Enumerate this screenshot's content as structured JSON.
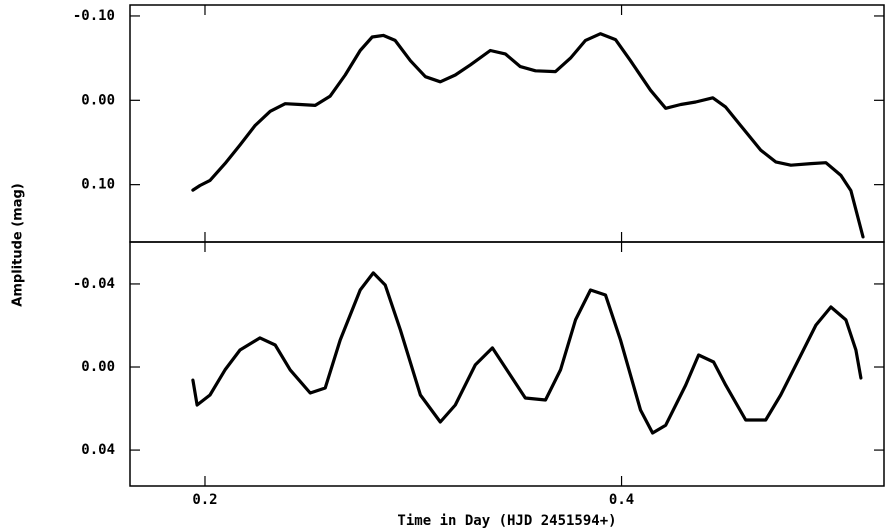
{
  "chart_data": [
    {
      "type": "line",
      "ylabel": "Amplitude (mag)",
      "color": "#000000",
      "y_inverted": true,
      "xlim": [
        0.164,
        0.526
      ],
      "ylim": [
        -0.113,
        0.168
      ],
      "yticks": [
        {
          "value": -0.1,
          "label": "-0.10"
        },
        {
          "value": 0,
          "label": "0.00"
        },
        {
          "value": 0.1,
          "label": "0.10"
        }
      ],
      "x": [
        0.1942,
        0.1976,
        0.2024,
        0.2096,
        0.2168,
        0.224,
        0.2313,
        0.2385,
        0.2457,
        0.2529,
        0.2601,
        0.2673,
        0.2745,
        0.2803,
        0.2856,
        0.2913,
        0.2986,
        0.3058,
        0.313,
        0.3202,
        0.3274,
        0.337,
        0.3442,
        0.3514,
        0.3587,
        0.3683,
        0.3755,
        0.3827,
        0.3899,
        0.3971,
        0.4043,
        0.4139,
        0.4212,
        0.4284,
        0.4356,
        0.4438,
        0.45,
        0.4572,
        0.4668,
        0.474,
        0.4813,
        0.4909,
        0.4981,
        0.5053,
        0.5101,
        0.5159
      ],
      "values": [
        0.1065,
        0.101,
        0.095,
        0.075,
        0.053,
        0.03,
        0.013,
        0.004,
        0.005,
        0.006,
        -0.005,
        -0.03,
        -0.059,
        -0.075,
        -0.077,
        -0.071,
        -0.047,
        -0.028,
        -0.022,
        -0.03,
        -0.042,
        -0.059,
        -0.055,
        -0.04,
        -0.035,
        -0.034,
        -0.05,
        -0.071,
        -0.079,
        -0.072,
        -0.047,
        -0.012,
        0.0095,
        0.005,
        0.002,
        -0.003,
        0.008,
        0.03,
        0.059,
        0.073,
        0.077,
        0.075,
        0.074,
        0.089,
        0.107,
        0.162
      ]
    },
    {
      "type": "line",
      "xlabel": "Time in Day (HJD 2451594+)",
      "color": "#000000",
      "y_inverted": true,
      "xlim": [
        0.164,
        0.526
      ],
      "ylim": [
        -0.0602,
        0.0573
      ],
      "xticks": [
        0.2,
        0.4
      ],
      "yticks": [
        {
          "value": -0.04,
          "label": "-0.04"
        },
        {
          "value": 0,
          "label": "0.00"
        },
        {
          "value": 0.04,
          "label": "0.04"
        }
      ],
      "x": [
        0.1942,
        0.1962,
        0.2024,
        0.2096,
        0.2168,
        0.2264,
        0.2337,
        0.2409,
        0.2505,
        0.2577,
        0.2649,
        0.2745,
        0.2808,
        0.2865,
        0.2938,
        0.3034,
        0.313,
        0.3202,
        0.3298,
        0.338,
        0.3466,
        0.3538,
        0.3635,
        0.3707,
        0.3779,
        0.3851,
        0.3923,
        0.3995,
        0.4091,
        0.4149,
        0.4212,
        0.4308,
        0.437,
        0.4442,
        0.45,
        0.4596,
        0.4692,
        0.4764,
        0.4861,
        0.4933,
        0.5005,
        0.5077,
        0.5125,
        0.5149
      ],
      "values": [
        0.0063,
        0.0183,
        0.0135,
        0.0014,
        -0.0082,
        -0.014,
        -0.0106,
        0.0014,
        0.0125,
        0.0101,
        -0.013,
        -0.0371,
        -0.0453,
        -0.0395,
        -0.0178,
        0.0135,
        0.0265,
        0.0183,
        -0.001,
        -0.0092,
        0.0039,
        0.0149,
        0.0159,
        0.0014,
        -0.0227,
        -0.0371,
        -0.0347,
        -0.013,
        0.0207,
        0.0318,
        0.028,
        0.0087,
        -0.0058,
        -0.0024,
        0.0087,
        0.0255,
        0.0255,
        0.0135,
        -0.0058,
        -0.0202,
        -0.0289,
        -0.0227,
        -0.0082,
        0.0053
      ]
    }
  ]
}
